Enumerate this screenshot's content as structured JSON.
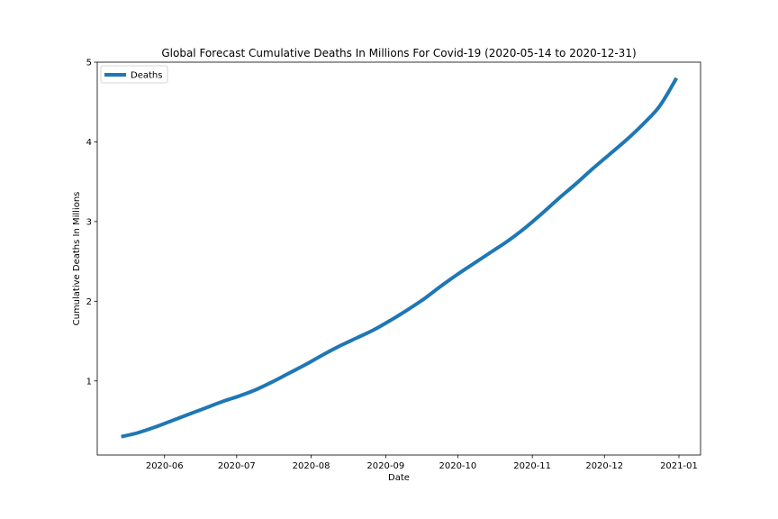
{
  "chart_data": {
    "type": "line",
    "title": "Global Forecast Cumulative Deaths In Millions For Covid-19 (2020-05-14 to 2020-12-31)",
    "xlabel": "Date",
    "ylabel": "Cumulative Deaths In Millions",
    "xlim": [
      "2020-05-04",
      "2021-01-10"
    ],
    "ylim": [
      0.07,
      5.0
    ],
    "x_ticks": [
      "2020-06-01",
      "2020-07-01",
      "2020-08-01",
      "2020-09-01",
      "2020-10-01",
      "2020-11-01",
      "2020-12-01",
      "2021-01-01"
    ],
    "x_tick_labels": [
      "2020-06",
      "2020-07",
      "2020-08",
      "2020-09",
      "2020-10",
      "2020-11",
      "2020-12",
      "2021-01"
    ],
    "y_ticks": [
      1,
      2,
      3,
      4,
      5
    ],
    "grid": false,
    "legend_position": "top-left",
    "series": [
      {
        "name": "Deaths",
        "color": "#1f77b4",
        "points": [
          [
            "2020-05-14",
            0.3
          ],
          [
            "2020-05-21",
            0.35
          ],
          [
            "2020-05-28",
            0.42
          ],
          [
            "2020-06-04",
            0.5
          ],
          [
            "2020-06-11",
            0.58
          ],
          [
            "2020-06-18",
            0.66
          ],
          [
            "2020-06-25",
            0.74
          ],
          [
            "2020-07-02",
            0.81
          ],
          [
            "2020-07-09",
            0.89
          ],
          [
            "2020-07-16",
            0.99
          ],
          [
            "2020-07-23",
            1.1
          ],
          [
            "2020-07-30",
            1.21
          ],
          [
            "2020-08-06",
            1.33
          ],
          [
            "2020-08-13",
            1.44
          ],
          [
            "2020-08-20",
            1.54
          ],
          [
            "2020-08-27",
            1.64
          ],
          [
            "2020-09-03",
            1.76
          ],
          [
            "2020-09-10",
            1.89
          ],
          [
            "2020-09-17",
            2.03
          ],
          [
            "2020-09-24",
            2.19
          ],
          [
            "2020-10-01",
            2.34
          ],
          [
            "2020-10-08",
            2.48
          ],
          [
            "2020-10-15",
            2.62
          ],
          [
            "2020-10-22",
            2.76
          ],
          [
            "2020-10-29",
            2.92
          ],
          [
            "2020-11-05",
            3.1
          ],
          [
            "2020-11-12",
            3.29
          ],
          [
            "2020-11-19",
            3.47
          ],
          [
            "2020-11-26",
            3.66
          ],
          [
            "2020-12-03",
            3.84
          ],
          [
            "2020-12-10",
            4.02
          ],
          [
            "2020-12-17",
            4.22
          ],
          [
            "2020-12-24",
            4.45
          ],
          [
            "2020-12-31",
            4.8
          ]
        ]
      }
    ]
  }
}
